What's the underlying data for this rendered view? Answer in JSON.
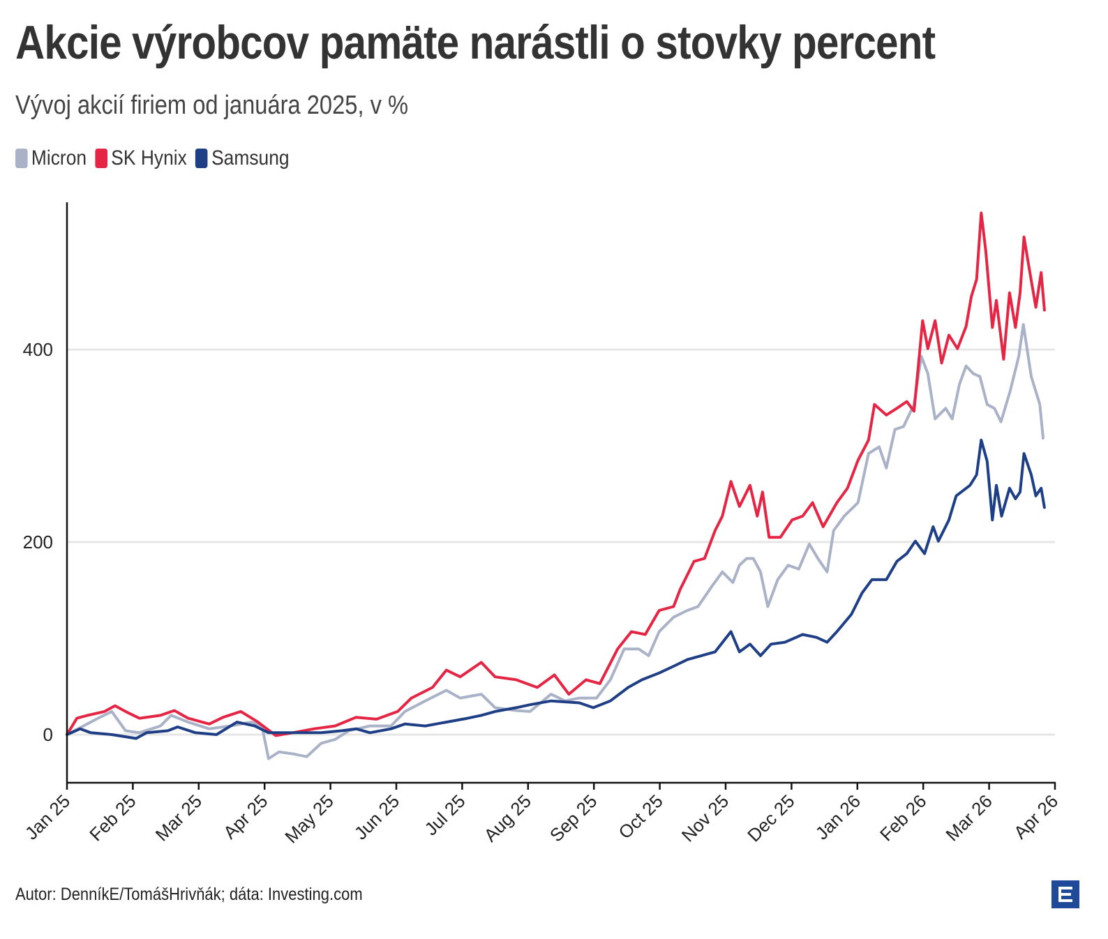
{
  "title": "Akcie výrobcov pamäte narástli o stovky percent",
  "subtitle": "Vývoj akcií firiem od januára 2025, v %",
  "footer": "Autor: DenníkE/TomášHrivňák; dáta: Investing.com",
  "logo": "E",
  "chart_data": {
    "type": "line",
    "title": "Akcie výrobcov pamäte narástli o stovky percent",
    "subtitle": "Vývoj akcií firiem od januára 2025, v %",
    "xlabel": "",
    "ylabel": "",
    "x_unit": "months since Jan 2025",
    "xlim": [
      0,
      15
    ],
    "ylim": [
      -50,
      553
    ],
    "yticks": [
      0,
      200,
      400
    ],
    "xtick_labels": [
      "Jan 25",
      "Feb 25",
      "Mar 25",
      "Apr 25",
      "May 25",
      "Jun 25",
      "Jul 25",
      "Aug 25",
      "Sep 25",
      "Oct 25",
      "Nov 25",
      "Dec 25",
      "Jan 26",
      "Feb 26",
      "Mar 26",
      "Apr 26"
    ],
    "grid": "horizontal",
    "legend_position": "top-left",
    "series": [
      {
        "name": "Micron",
        "color": "#a9b2c6",
        "points": [
          [
            0,
            0
          ],
          [
            0.25,
            9
          ],
          [
            0.47,
            17
          ],
          [
            0.68,
            24
          ],
          [
            0.89,
            4
          ],
          [
            1.1,
            2
          ],
          [
            1.42,
            9
          ],
          [
            1.58,
            20
          ],
          [
            1.84,
            13
          ],
          [
            2.16,
            6
          ],
          [
            2.48,
            9
          ],
          [
            2.8,
            13
          ],
          [
            2.96,
            9
          ],
          [
            3.06,
            -25
          ],
          [
            3.22,
            -18
          ],
          [
            3.43,
            -20
          ],
          [
            3.64,
            -23
          ],
          [
            3.86,
            -9
          ],
          [
            4.07,
            -5
          ],
          [
            4.28,
            4
          ],
          [
            4.6,
            9
          ],
          [
            4.92,
            9
          ],
          [
            5.13,
            24
          ],
          [
            5.44,
            35
          ],
          [
            5.76,
            46
          ],
          [
            5.97,
            38
          ],
          [
            6.29,
            42
          ],
          [
            6.5,
            28
          ],
          [
            6.82,
            25
          ],
          [
            7.03,
            24
          ],
          [
            7.35,
            42
          ],
          [
            7.56,
            35
          ],
          [
            7.78,
            38
          ],
          [
            8.04,
            38
          ],
          [
            8.25,
            57
          ],
          [
            8.46,
            89
          ],
          [
            8.68,
            89
          ],
          [
            8.83,
            82
          ],
          [
            8.99,
            107
          ],
          [
            9.21,
            122
          ],
          [
            9.42,
            129
          ],
          [
            9.58,
            133
          ],
          [
            9.79,
            154
          ],
          [
            9.95,
            169
          ],
          [
            10.11,
            158
          ],
          [
            10.21,
            176
          ],
          [
            10.32,
            183
          ],
          [
            10.42,
            183
          ],
          [
            10.53,
            169
          ],
          [
            10.64,
            133
          ],
          [
            10.79,
            161
          ],
          [
            10.95,
            176
          ],
          [
            11.11,
            172
          ],
          [
            11.27,
            198
          ],
          [
            11.4,
            183
          ],
          [
            11.54,
            169
          ],
          [
            11.64,
            212
          ],
          [
            11.8,
            227
          ],
          [
            12.01,
            241
          ],
          [
            12.17,
            292
          ],
          [
            12.33,
            299
          ],
          [
            12.44,
            277
          ],
          [
            12.57,
            317
          ],
          [
            12.7,
            320
          ],
          [
            12.86,
            343
          ],
          [
            12.97,
            393
          ],
          [
            13.07,
            375
          ],
          [
            13.18,
            328
          ],
          [
            13.34,
            339
          ],
          [
            13.44,
            328
          ],
          [
            13.55,
            364
          ],
          [
            13.65,
            383
          ],
          [
            13.76,
            375
          ],
          [
            13.86,
            372
          ],
          [
            13.97,
            343
          ],
          [
            14.08,
            339
          ],
          [
            14.18,
            325
          ],
          [
            14.32,
            357
          ],
          [
            14.45,
            393
          ],
          [
            14.52,
            426
          ],
          [
            14.64,
            372
          ],
          [
            14.77,
            343
          ],
          [
            14.82,
            308
          ]
        ]
      },
      {
        "name": "SK Hynix",
        "color": "#e42544",
        "points": [
          [
            0,
            0
          ],
          [
            0.15,
            17
          ],
          [
            0.31,
            20
          ],
          [
            0.57,
            24
          ],
          [
            0.73,
            30
          ],
          [
            0.89,
            24
          ],
          [
            1.1,
            17
          ],
          [
            1.42,
            20
          ],
          [
            1.63,
            25
          ],
          [
            1.84,
            17
          ],
          [
            2.16,
            11
          ],
          [
            2.37,
            18
          ],
          [
            2.64,
            24
          ],
          [
            2.9,
            13
          ],
          [
            3.17,
            -1
          ],
          [
            3.43,
            2
          ],
          [
            3.75,
            6
          ],
          [
            4.07,
            9
          ],
          [
            4.39,
            18
          ],
          [
            4.7,
            16
          ],
          [
            5.02,
            24
          ],
          [
            5.23,
            38
          ],
          [
            5.55,
            49
          ],
          [
            5.76,
            67
          ],
          [
            5.97,
            60
          ],
          [
            6.29,
            75
          ],
          [
            6.5,
            60
          ],
          [
            6.82,
            57
          ],
          [
            7.14,
            49
          ],
          [
            7.4,
            62
          ],
          [
            7.62,
            42
          ],
          [
            7.88,
            57
          ],
          [
            8.09,
            53
          ],
          [
            8.36,
            89
          ],
          [
            8.57,
            107
          ],
          [
            8.78,
            104
          ],
          [
            8.99,
            129
          ],
          [
            9.21,
            133
          ],
          [
            9.31,
            151
          ],
          [
            9.52,
            180
          ],
          [
            9.68,
            183
          ],
          [
            9.84,
            212
          ],
          [
            9.95,
            227
          ],
          [
            10.08,
            263
          ],
          [
            10.21,
            237
          ],
          [
            10.37,
            259
          ],
          [
            10.48,
            227
          ],
          [
            10.56,
            252
          ],
          [
            10.66,
            205
          ],
          [
            10.83,
            205
          ],
          [
            11.01,
            223
          ],
          [
            11.17,
            227
          ],
          [
            11.32,
            241
          ],
          [
            11.48,
            216
          ],
          [
            11.69,
            241
          ],
          [
            11.85,
            256
          ],
          [
            12.01,
            285
          ],
          [
            12.17,
            306
          ],
          [
            12.26,
            343
          ],
          [
            12.44,
            332
          ],
          [
            12.6,
            339
          ],
          [
            12.75,
            346
          ],
          [
            12.86,
            336
          ],
          [
            12.99,
            430
          ],
          [
            13.07,
            401
          ],
          [
            13.18,
            430
          ],
          [
            13.28,
            386
          ],
          [
            13.39,
            415
          ],
          [
            13.52,
            401
          ],
          [
            13.65,
            424
          ],
          [
            13.73,
            455
          ],
          [
            13.81,
            473
          ],
          [
            13.88,
            542
          ],
          [
            13.95,
            502
          ],
          [
            14.05,
            423
          ],
          [
            14.11,
            451
          ],
          [
            14.22,
            390
          ],
          [
            14.31,
            459
          ],
          [
            14.4,
            423
          ],
          [
            14.47,
            459
          ],
          [
            14.53,
            517
          ],
          [
            14.6,
            488
          ],
          [
            14.71,
            444
          ],
          [
            14.79,
            480
          ],
          [
            14.84,
            441
          ]
        ]
      },
      {
        "name": "Samsung",
        "color": "#1e3f85",
        "points": [
          [
            0,
            0
          ],
          [
            0.2,
            6
          ],
          [
            0.36,
            2
          ],
          [
            0.68,
            0
          ],
          [
            1.05,
            -4
          ],
          [
            1.21,
            2
          ],
          [
            1.53,
            4
          ],
          [
            1.68,
            8
          ],
          [
            1.95,
            2
          ],
          [
            2.27,
            0
          ],
          [
            2.58,
            13
          ],
          [
            2.85,
            9
          ],
          [
            3.06,
            2
          ],
          [
            3.22,
            2
          ],
          [
            3.43,
            2
          ],
          [
            3.86,
            2
          ],
          [
            4.17,
            4
          ],
          [
            4.39,
            6
          ],
          [
            4.6,
            2
          ],
          [
            4.92,
            6
          ],
          [
            5.13,
            11
          ],
          [
            5.44,
            9
          ],
          [
            5.76,
            13
          ],
          [
            6.08,
            17
          ],
          [
            6.29,
            20
          ],
          [
            6.5,
            24
          ],
          [
            6.82,
            28
          ],
          [
            7.03,
            31
          ],
          [
            7.35,
            35
          ],
          [
            7.78,
            33
          ],
          [
            7.99,
            28
          ],
          [
            8.25,
            35
          ],
          [
            8.52,
            49
          ],
          [
            8.73,
            57
          ],
          [
            8.99,
            64
          ],
          [
            9.21,
            71
          ],
          [
            9.42,
            78
          ],
          [
            9.63,
            82
          ],
          [
            9.84,
            86
          ],
          [
            10.08,
            107
          ],
          [
            10.21,
            86
          ],
          [
            10.37,
            94
          ],
          [
            10.53,
            82
          ],
          [
            10.69,
            94
          ],
          [
            10.9,
            96
          ],
          [
            11.17,
            104
          ],
          [
            11.38,
            101
          ],
          [
            11.54,
            96
          ],
          [
            11.69,
            107
          ],
          [
            11.91,
            125
          ],
          [
            12.07,
            147
          ],
          [
            12.22,
            161
          ],
          [
            12.44,
            161
          ],
          [
            12.6,
            180
          ],
          [
            12.75,
            188
          ],
          [
            12.88,
            201
          ],
          [
            13.02,
            188
          ],
          [
            13.15,
            216
          ],
          [
            13.23,
            201
          ],
          [
            13.39,
            223
          ],
          [
            13.5,
            248
          ],
          [
            13.71,
            259
          ],
          [
            13.81,
            270
          ],
          [
            13.88,
            306
          ],
          [
            13.97,
            284
          ],
          [
            14.05,
            223
          ],
          [
            14.11,
            259
          ],
          [
            14.19,
            227
          ],
          [
            14.31,
            256
          ],
          [
            14.4,
            245
          ],
          [
            14.47,
            252
          ],
          [
            14.53,
            292
          ],
          [
            14.64,
            270
          ],
          [
            14.71,
            248
          ],
          [
            14.79,
            256
          ],
          [
            14.84,
            236
          ]
        ]
      }
    ]
  }
}
